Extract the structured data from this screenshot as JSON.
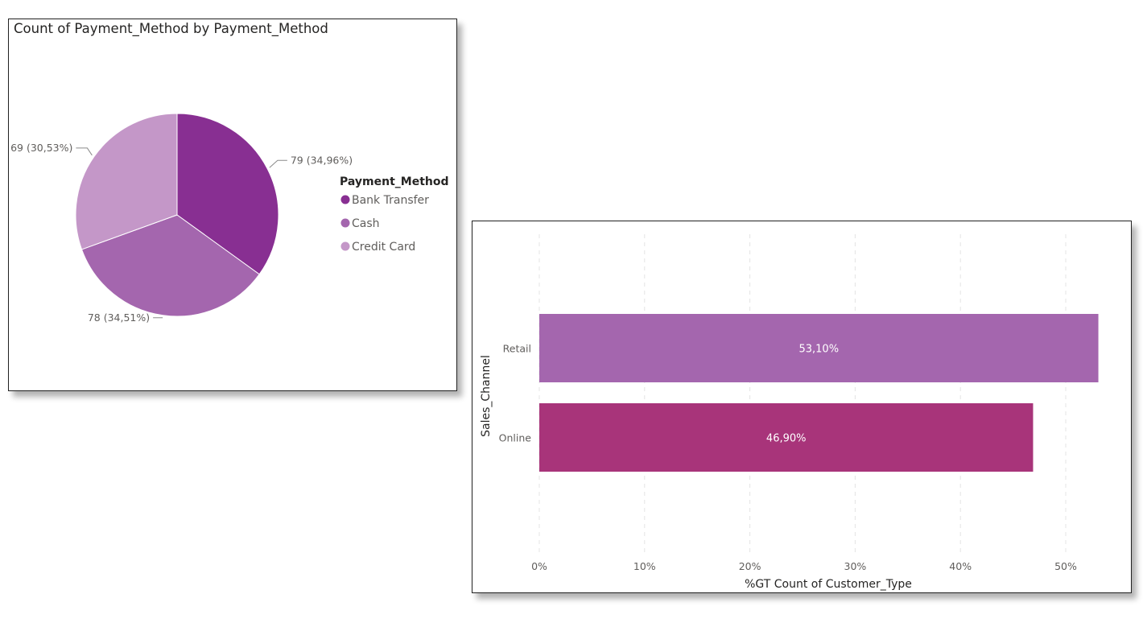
{
  "chart_data": [
    {
      "type": "pie",
      "title": "Count of Payment_Method by Payment_Method",
      "legend_title": "Payment_Method",
      "legend_position": "right",
      "slices": [
        {
          "label": "Bank Transfer",
          "value": 79,
          "percent_label": "34,96%",
          "data_label": "79 (34,96%)",
          "color": "#882F92"
        },
        {
          "label": "Cash",
          "value": 78,
          "percent_label": "34,51%",
          "data_label": "78 (34,51%)",
          "color": "#A466AE"
        },
        {
          "label": "Credit Card",
          "value": 69,
          "percent_label": "30,53%",
          "data_label": "69 (30,53%)",
          "color": "#C497C8"
        }
      ]
    },
    {
      "type": "bar",
      "orientation": "horizontal",
      "categories": [
        "Retail",
        "Online"
      ],
      "values": [
        53.1,
        46.9
      ],
      "value_labels": [
        "53,10%",
        "46,90%"
      ],
      "colors": [
        "#A466AE",
        "#A8347A"
      ],
      "xlabel": "%GT Count of Customer_Type",
      "ylabel": "Sales_Channel",
      "xlim": [
        0,
        53.1
      ],
      "xticks": [
        "0%",
        "10%",
        "20%",
        "30%",
        "40%",
        "50%"
      ],
      "xtick_values": [
        0,
        10,
        20,
        30,
        40,
        50
      ],
      "grid": "vertical dashed"
    }
  ]
}
